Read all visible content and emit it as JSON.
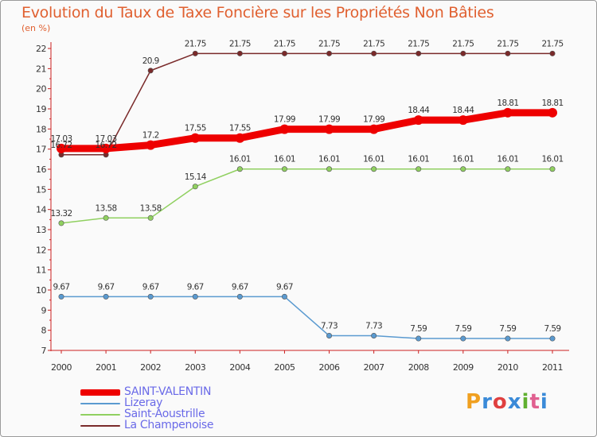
{
  "title": "Evolution du Taux de Taxe Foncière sur les Propriétés Non Bâties",
  "unit_label": "(en %)",
  "logo": {
    "text": "Proxiti",
    "colors": [
      "#f0a020",
      "#3a8ad8",
      "#e04040",
      "#3a8ad8",
      "#60b030",
      "#e06090",
      "#3a8ad8"
    ]
  },
  "chart_data": {
    "type": "line",
    "title": "Evolution du Taux de Taxe Foncière sur les Propriétés Non Bâties",
    "ylabel": "(en %)",
    "xlabel": "",
    "x": [
      2000,
      2001,
      2002,
      2003,
      2004,
      2005,
      2006,
      2007,
      2008,
      2009,
      2010,
      2011
    ],
    "ylim": [
      7,
      22
    ],
    "yticks": [
      7,
      8,
      9,
      10,
      11,
      12,
      13,
      14,
      15,
      16,
      17,
      18,
      19,
      20,
      21,
      22
    ],
    "grid": false,
    "legend_position": "bottom-left",
    "series": [
      {
        "name": "SAINT-VALENTIN",
        "color": "#ee0000",
        "width": 9,
        "marker": 6,
        "values": [
          17.03,
          17.03,
          17.2,
          17.55,
          17.55,
          17.99,
          17.99,
          17.99,
          18.44,
          18.44,
          18.81,
          18.81
        ],
        "labels": [
          "17.03",
          "17.03",
          "17.2",
          "17.55",
          "17.55",
          "17.99",
          "17.99",
          "17.99",
          "18.44",
          "18.44",
          "18.81",
          "18.81"
        ]
      },
      {
        "name": "Lizeray",
        "color": "#5a9ad0",
        "width": 1.5,
        "marker": 3.2,
        "values": [
          9.67,
          9.67,
          9.67,
          9.67,
          9.67,
          9.67,
          7.73,
          7.73,
          7.59,
          7.59,
          7.59,
          7.59
        ],
        "labels": [
          "9.67",
          "9.67",
          "9.67",
          "9.67",
          "9.67",
          "9.67",
          "7.73",
          "7.73",
          "7.59",
          "7.59",
          "7.59",
          "7.59"
        ]
      },
      {
        "name": "Saint-Aoustrille",
        "color": "#90d060",
        "width": 1.5,
        "marker": 3.2,
        "values": [
          13.32,
          13.58,
          13.58,
          15.14,
          16.01,
          16.01,
          16.01,
          16.01,
          16.01,
          16.01,
          16.01,
          16.01
        ],
        "labels": [
          "13.32",
          "13.58",
          "13.58",
          "15.14",
          "16.01",
          "16.01",
          "16.01",
          "16.01",
          "16.01",
          "16.01",
          "16.01",
          "16.01"
        ]
      },
      {
        "name": "La Champenoise",
        "color": "#7a2a2a",
        "width": 1.5,
        "marker": 3.2,
        "values": [
          16.72,
          16.72,
          20.9,
          21.75,
          21.75,
          21.75,
          21.75,
          21.75,
          21.75,
          21.75,
          21.75,
          21.75
        ],
        "labels": [
          "16.72",
          "16.72",
          "20.9",
          "21.75",
          "21.75",
          "21.75",
          "21.75",
          "21.75",
          "21.75",
          "21.75",
          "21.75",
          "21.75"
        ]
      }
    ]
  }
}
